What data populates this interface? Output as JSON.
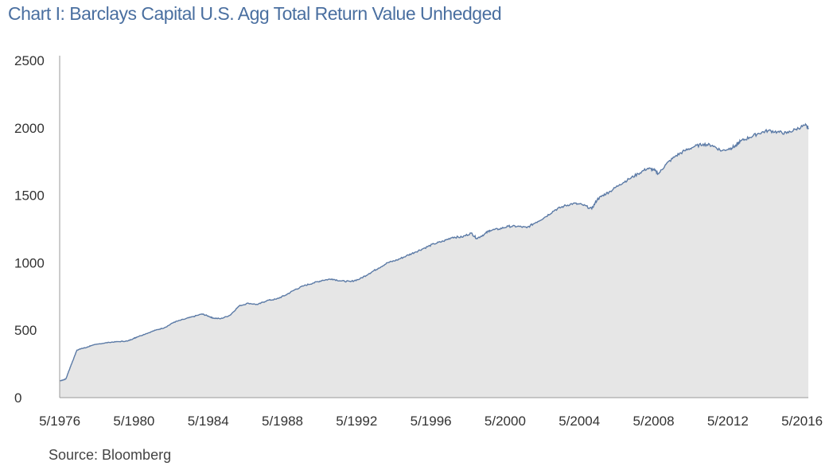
{
  "chart_data": {
    "type": "area",
    "title": "Chart I: Barclays Capital U.S. Agg Total Return Value Unhedged",
    "source": "Source: Bloomberg",
    "xlabel": "",
    "ylabel": "",
    "x_ticks": [
      "5/1976",
      "5/1980",
      "5/1984",
      "5/1988",
      "5/1992",
      "5/1996",
      "5/2000",
      "5/2004",
      "5/2008",
      "5/2012",
      "5/2016"
    ],
    "y_ticks": [
      "0",
      "500",
      "1000",
      "1500",
      "2000",
      "2500"
    ],
    "xlim": [
      1976.33,
      2016.67
    ],
    "ylim": [
      0,
      2500
    ],
    "grid": false,
    "legend": "none",
    "colors": {
      "line": "#5b7aa6",
      "fill": "#e6e6e6",
      "title": "#4a6fa0",
      "axis": "#999999"
    },
    "series": [
      {
        "x": [
          1976.33,
          1976.5,
          1976.67,
          1976.83,
          1977.0,
          1977.25,
          1977.5,
          1977.75,
          1978.0,
          1978.5,
          1979.0,
          1979.5,
          1980.0,
          1980.33,
          1980.5,
          1981.0,
          1981.5,
          1982.0,
          1982.5,
          1983.0,
          1983.5,
          1984.0,
          1984.33,
          1984.6,
          1985.0,
          1985.5,
          1986.0,
          1986.5,
          1987.0,
          1987.5,
          1988.0,
          1988.5,
          1989.0,
          1989.5,
          1990.0,
          1990.5,
          1991.0,
          1991.5,
          1992.0,
          1992.5,
          1993.0,
          1993.5,
          1994.0,
          1994.5,
          1995.0,
          1995.5,
          1996.0,
          1996.5,
          1997.0,
          1997.5,
          1998.0,
          1998.5,
          1998.8,
          1999.2,
          1999.5,
          2000.0,
          2000.5,
          2001.0,
          2001.5,
          2002.0,
          2002.5,
          2003.0,
          2003.5,
          2004.0,
          2004.5,
          2005.0,
          2005.3,
          2005.6,
          2006.0,
          2006.5,
          2007.0,
          2007.5,
          2008.0,
          2008.33,
          2008.6,
          2009.0,
          2009.5,
          2010.0,
          2010.5,
          2011.0,
          2011.5,
          2012.0,
          2012.5,
          2012.8,
          2013.0,
          2013.5,
          2014.0,
          2014.5,
          2015.0,
          2015.5,
          2016.0,
          2016.5,
          2016.67
        ],
        "y": [
          125,
          130,
          140,
          200,
          260,
          350,
          365,
          370,
          385,
          400,
          410,
          415,
          420,
          440,
          450,
          475,
          500,
          520,
          560,
          580,
          600,
          620,
          605,
          590,
          585,
          610,
          680,
          700,
          690,
          720,
          730,
          760,
          800,
          830,
          850,
          870,
          880,
          865,
          860,
          880,
          920,
          960,
          1000,
          1020,
          1050,
          1080,
          1110,
          1140,
          1160,
          1190,
          1190,
          1220,
          1180,
          1210,
          1240,
          1250,
          1270,
          1270,
          1260,
          1300,
          1340,
          1390,
          1420,
          1440,
          1430,
          1400,
          1470,
          1500,
          1530,
          1580,
          1620,
          1660,
          1700,
          1690,
          1660,
          1730,
          1790,
          1830,
          1860,
          1880,
          1870,
          1830,
          1850,
          1870,
          1900,
          1930,
          1960,
          1980,
          1970,
          1960,
          1990,
          2020,
          2000
        ]
      }
    ]
  }
}
